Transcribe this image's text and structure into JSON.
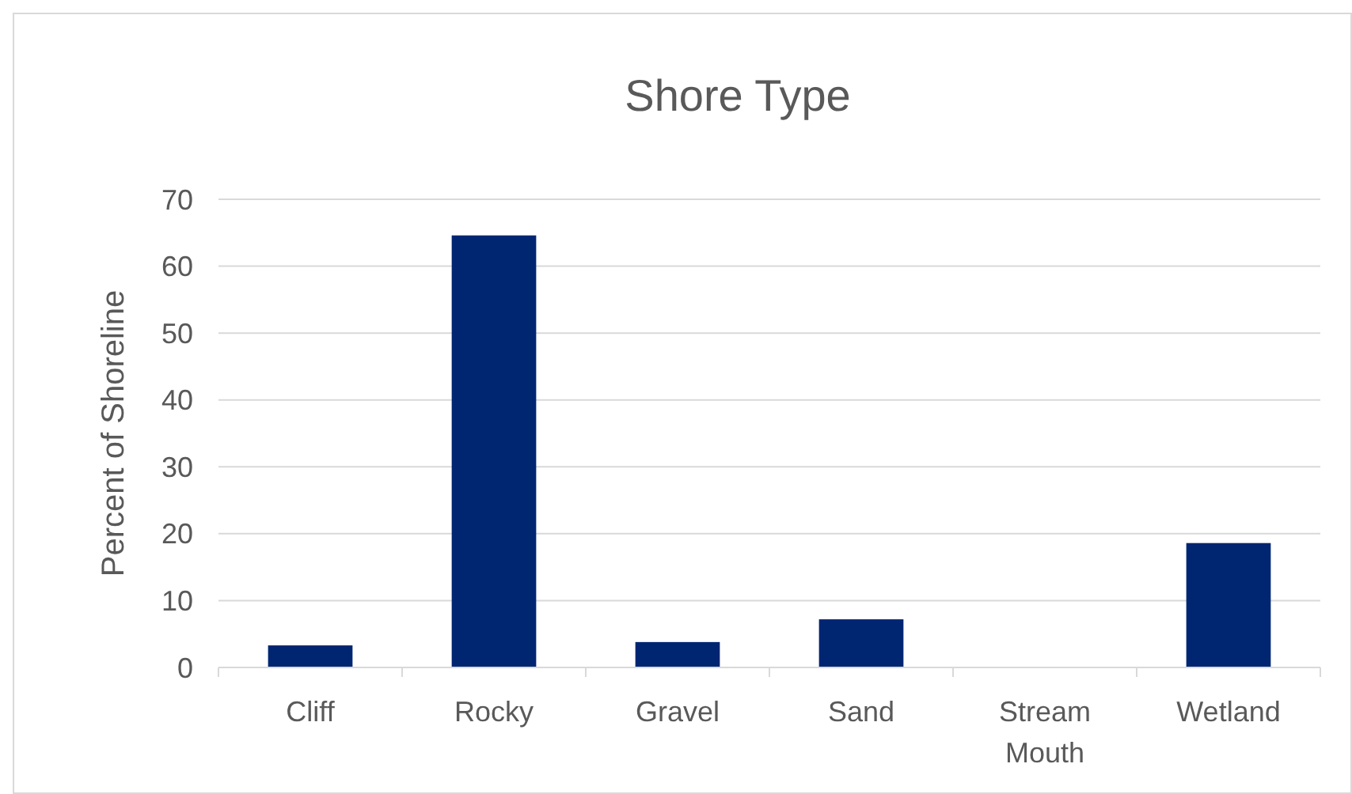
{
  "chart_data": {
    "type": "bar",
    "title": "Shore Type",
    "ylabel": "Percent of Shoreline",
    "categories": [
      "Cliff",
      "Rocky",
      "Gravel",
      "Sand",
      "Stream Mouth",
      "Wetland"
    ],
    "values": [
      3.3,
      64.6,
      3.8,
      7.2,
      0,
      18.6
    ],
    "color": "#002672",
    "ylim": [
      0,
      70
    ],
    "yticks": [
      0,
      10,
      20,
      30,
      40,
      50,
      60,
      70
    ],
    "grid": "y"
  }
}
